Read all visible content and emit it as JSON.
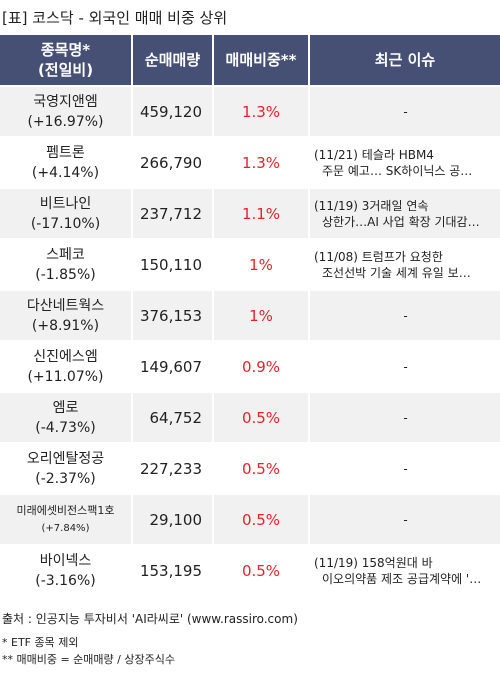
{
  "title": "[표] 코스닥 - 외국인 매매 비중 상위",
  "headers": {
    "name_l1": "종목명*",
    "name_l2": "(전일비)",
    "volume": "순매매량",
    "ratio": "매매비중**",
    "issue": "최근 이슈"
  },
  "rows": [
    {
      "name": "국영지앤엠",
      "change": "(+16.97%)",
      "volume": "459,120",
      "ratio": "1.3%",
      "issue_l1": "-",
      "issue_l2": ""
    },
    {
      "name": "펨트론",
      "change": "(+4.14%)",
      "volume": "266,790",
      "ratio": "1.3%",
      "issue_l1": "(11/21) 테슬라 HBM4",
      "issue_l2": "주문 예고… SK하이닉스 공…"
    },
    {
      "name": "비트나인",
      "change": "(-17.10%)",
      "volume": "237,712",
      "ratio": "1.1%",
      "issue_l1": "(11/19) 3거래일 연속",
      "issue_l2": "상한가…AI 사업 확장 기대감…"
    },
    {
      "name": "스페코",
      "change": "(-1.85%)",
      "volume": "150,110",
      "ratio": "1%",
      "issue_l1": "(11/08) 트럼프가 요청한",
      "issue_l2": "조선선박 기술 세계 유일 보…"
    },
    {
      "name": "다산네트웍스",
      "change": "(+8.91%)",
      "volume": "376,153",
      "ratio": "1%",
      "issue_l1": "-",
      "issue_l2": ""
    },
    {
      "name": "신진에스엠",
      "change": "(+11.07%)",
      "volume": "149,607",
      "ratio": "0.9%",
      "issue_l1": "-",
      "issue_l2": ""
    },
    {
      "name": "엠로",
      "change": "(-4.73%)",
      "volume": "64,752",
      "ratio": "0.5%",
      "issue_l1": "-",
      "issue_l2": ""
    },
    {
      "name": "오리엔탈정공",
      "change": "(-2.37%)",
      "volume": "227,233",
      "ratio": "0.5%",
      "issue_l1": "-",
      "issue_l2": ""
    },
    {
      "name": "미래에셋비전스팩1호",
      "change": "(+7.84%)",
      "volume": "29,100",
      "ratio": "0.5%",
      "issue_l1": "-",
      "issue_l2": ""
    },
    {
      "name": "바이넥스",
      "change": "(-3.16%)",
      "volume": "153,195",
      "ratio": "0.5%",
      "issue_l1": "(11/19) 158억원대 바",
      "issue_l2": "이오의약품 제조 공급계약에 '…"
    }
  ],
  "source": "출처 : 인공지능 투자비서 'AI라씨로' (www.rassiro.com)",
  "note1": "* ETF 종목 제외",
  "note2": "** 매매비중 = 순매매량 / 상장주식수",
  "colors": {
    "header_bg": "#465075",
    "ratio_text": "#e8222b",
    "row_shade": "#f1f1f1"
  }
}
